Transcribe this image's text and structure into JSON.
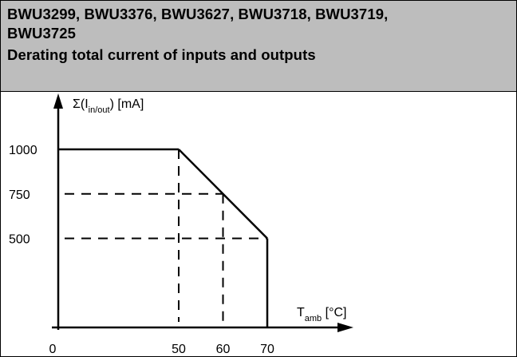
{
  "header": {
    "line1": "BWU3299, BWU3376, BWU3627, BWU3718, BWU3719,",
    "line2": "BWU3725",
    "title": "Derating total current of inputs and outputs"
  },
  "chart_data": {
    "type": "line",
    "title": "Derating total current of inputs and outputs",
    "ylabel": {
      "prefix": "Σ(I",
      "sub": "in/out",
      "suffix": ") [mA]"
    },
    "xlabel": {
      "prefix": "T",
      "sub": "amb",
      "suffix": " [°C]"
    },
    "x_origin_label": "0",
    "x_ticks": [
      50,
      60,
      70
    ],
    "y_ticks": [
      1000,
      750,
      500
    ],
    "series": [
      {
        "x": [
          0,
          50,
          70,
          70
        ],
        "y": [
          1000,
          1000,
          500,
          0
        ]
      }
    ],
    "guides": [
      {
        "from": [
          50,
          1000
        ],
        "to": [
          50,
          0
        ]
      },
      {
        "from": [
          0,
          750
        ],
        "to": [
          60,
          750
        ]
      },
      {
        "from": [
          60,
          750
        ],
        "to": [
          60,
          0
        ]
      },
      {
        "from": [
          0,
          500
        ],
        "to": [
          70,
          500
        ]
      }
    ],
    "grid": false
  }
}
